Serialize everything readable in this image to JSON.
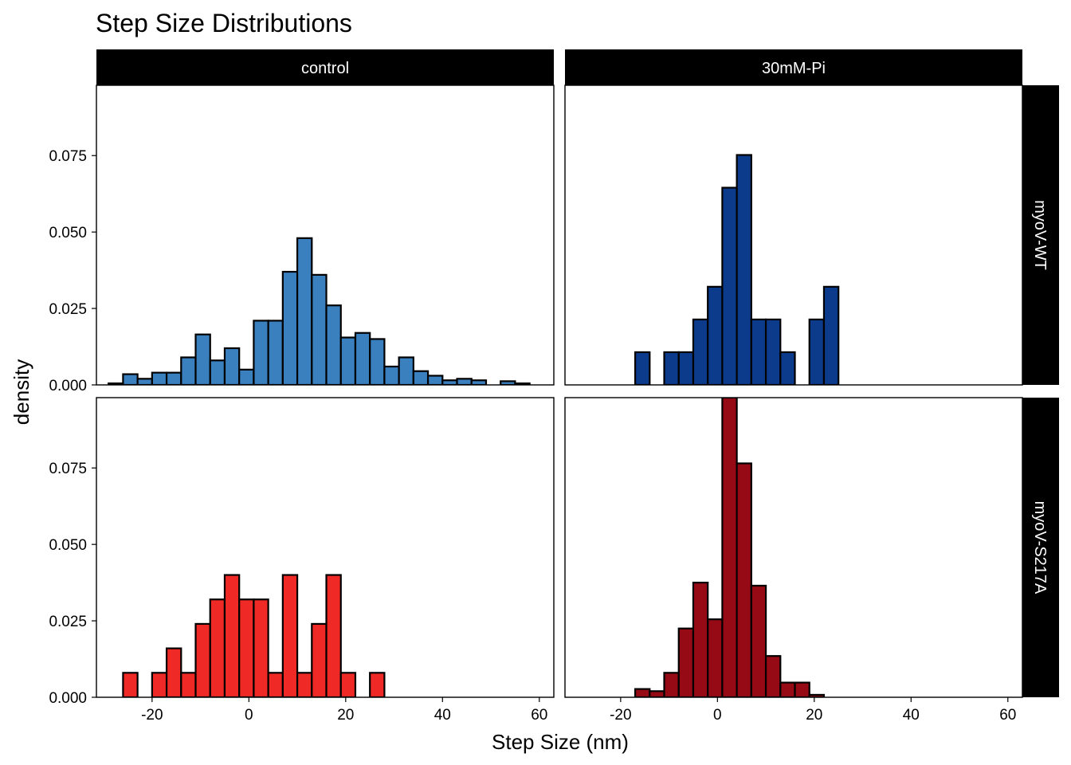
{
  "chart_data": {
    "type": "bar",
    "subtype": "faceted-histogram",
    "title": "Step Size Distributions",
    "xlabel": "Step Size (nm)",
    "ylabel": "density",
    "xlim": [
      -31.5,
      63
    ],
    "ylim": [
      0,
      0.098
    ],
    "x_ticks": [
      -20,
      0,
      20,
      40,
      60
    ],
    "x_tick_labels": [
      "-20",
      "0",
      "20",
      "40",
      "60"
    ],
    "y_ticks": [
      0,
      0.025,
      0.05,
      0.075
    ],
    "y_tick_labels": [
      "0.000",
      "0.025",
      "0.050",
      "0.075"
    ],
    "bin_width": 3,
    "facet_cols": [
      "control",
      "30mM-Pi"
    ],
    "facet_rows": [
      "myoV-WT",
      "myoV-S217A"
    ],
    "panels": [
      {
        "col": "control",
        "row": "myoV-WT",
        "color": "#3a80bf",
        "bins": [
          {
            "x0": -29,
            "y": 0.0005
          },
          {
            "x0": -26,
            "y": 0.0035
          },
          {
            "x0": -23,
            "y": 0.002
          },
          {
            "x0": -20,
            "y": 0.004
          },
          {
            "x0": -17,
            "y": 0.004
          },
          {
            "x0": -14,
            "y": 0.009
          },
          {
            "x0": -11,
            "y": 0.0165
          },
          {
            "x0": -8,
            "y": 0.008
          },
          {
            "x0": -5,
            "y": 0.012
          },
          {
            "x0": -2,
            "y": 0.005
          },
          {
            "x0": 1,
            "y": 0.021
          },
          {
            "x0": 4,
            "y": 0.021
          },
          {
            "x0": 7,
            "y": 0.037
          },
          {
            "x0": 10,
            "y": 0.048
          },
          {
            "x0": 13,
            "y": 0.036
          },
          {
            "x0": 16,
            "y": 0.026
          },
          {
            "x0": 19,
            "y": 0.0155
          },
          {
            "x0": 22,
            "y": 0.017
          },
          {
            "x0": 25,
            "y": 0.015
          },
          {
            "x0": 28,
            "y": 0.006
          },
          {
            "x0": 31,
            "y": 0.009
          },
          {
            "x0": 34,
            "y": 0.0045
          },
          {
            "x0": 37,
            "y": 0.003
          },
          {
            "x0": 40,
            "y": 0.0015
          },
          {
            "x0": 43,
            "y": 0.002
          },
          {
            "x0": 46,
            "y": 0.0015
          },
          {
            "x0": 49,
            "y": 0
          },
          {
            "x0": 52,
            "y": 0.0012
          },
          {
            "x0": 55,
            "y": 0.0005
          }
        ]
      },
      {
        "col": "30mM-Pi",
        "row": "myoV-WT",
        "color": "#0d3b8c",
        "bins": [
          {
            "x0": -29,
            "y": 0
          },
          {
            "x0": -26,
            "y": 0
          },
          {
            "x0": -23,
            "y": 0
          },
          {
            "x0": -20,
            "y": 0
          },
          {
            "x0": -17,
            "y": 0.0107
          },
          {
            "x0": -14,
            "y": 0
          },
          {
            "x0": -11,
            "y": 0.0107
          },
          {
            "x0": -8,
            "y": 0.0107
          },
          {
            "x0": -5,
            "y": 0.0214
          },
          {
            "x0": -2,
            "y": 0.0321
          },
          {
            "x0": 1,
            "y": 0.0645
          },
          {
            "x0": 4,
            "y": 0.0752
          },
          {
            "x0": 7,
            "y": 0.0214
          },
          {
            "x0": 10,
            "y": 0.0214
          },
          {
            "x0": 13,
            "y": 0.0107
          },
          {
            "x0": 16,
            "y": 0
          },
          {
            "x0": 19,
            "y": 0.0214
          },
          {
            "x0": 22,
            "y": 0.0321
          },
          {
            "x0": 25,
            "y": 0
          },
          {
            "x0": 28,
            "y": 0
          },
          {
            "x0": 31,
            "y": 0
          },
          {
            "x0": 34,
            "y": 0
          },
          {
            "x0": 37,
            "y": 0
          },
          {
            "x0": 40,
            "y": 0
          },
          {
            "x0": 43,
            "y": 0
          },
          {
            "x0": 46,
            "y": 0
          },
          {
            "x0": 49,
            "y": 0
          },
          {
            "x0": 52,
            "y": 0
          },
          {
            "x0": 55,
            "y": 0
          }
        ]
      },
      {
        "col": "control",
        "row": "myoV-S217A",
        "color": "#ef2a26",
        "bins": [
          {
            "x0": -29,
            "y": 0
          },
          {
            "x0": -26,
            "y": 0.008
          },
          {
            "x0": -23,
            "y": 0
          },
          {
            "x0": -20,
            "y": 0.008
          },
          {
            "x0": -17,
            "y": 0.016
          },
          {
            "x0": -14,
            "y": 0.008
          },
          {
            "x0": -11,
            "y": 0.024
          },
          {
            "x0": -8,
            "y": 0.032
          },
          {
            "x0": -5,
            "y": 0.04
          },
          {
            "x0": -2,
            "y": 0.032
          },
          {
            "x0": 1,
            "y": 0.032
          },
          {
            "x0": 4,
            "y": 0.008
          },
          {
            "x0": 7,
            "y": 0.04
          },
          {
            "x0": 10,
            "y": 0.008
          },
          {
            "x0": 13,
            "y": 0.024
          },
          {
            "x0": 16,
            "y": 0.04
          },
          {
            "x0": 19,
            "y": 0.008
          },
          {
            "x0": 22,
            "y": 0
          },
          {
            "x0": 25,
            "y": 0.008
          },
          {
            "x0": 28,
            "y": 0
          },
          {
            "x0": 31,
            "y": 0
          },
          {
            "x0": 34,
            "y": 0
          },
          {
            "x0": 37,
            "y": 0
          },
          {
            "x0": 40,
            "y": 0
          },
          {
            "x0": 43,
            "y": 0
          },
          {
            "x0": 46,
            "y": 0
          },
          {
            "x0": 49,
            "y": 0
          },
          {
            "x0": 52,
            "y": 0
          },
          {
            "x0": 55,
            "y": 0
          }
        ]
      },
      {
        "col": "30mM-Pi",
        "row": "myoV-S217A",
        "color": "#960a16",
        "bins": [
          {
            "x0": -29,
            "y": 0
          },
          {
            "x0": -26,
            "y": 0
          },
          {
            "x0": -23,
            "y": 0
          },
          {
            "x0": -20,
            "y": 0
          },
          {
            "x0": -17,
            "y": 0.0027
          },
          {
            "x0": -14,
            "y": 0.002
          },
          {
            "x0": -11,
            "y": 0.008
          },
          {
            "x0": -8,
            "y": 0.0225
          },
          {
            "x0": -5,
            "y": 0.0375
          },
          {
            "x0": -2,
            "y": 0.0255
          },
          {
            "x0": 1,
            "y": 0.098
          },
          {
            "x0": 4,
            "y": 0.0765
          },
          {
            "x0": 7,
            "y": 0.0365
          },
          {
            "x0": 10,
            "y": 0.0135
          },
          {
            "x0": 13,
            "y": 0.0048
          },
          {
            "x0": 16,
            "y": 0.0048
          },
          {
            "x0": 19,
            "y": 0.0008
          },
          {
            "x0": 22,
            "y": 0
          },
          {
            "x0": 25,
            "y": 0
          },
          {
            "x0": 28,
            "y": 0
          },
          {
            "x0": 31,
            "y": 0
          },
          {
            "x0": 34,
            "y": 0
          },
          {
            "x0": 37,
            "y": 0
          },
          {
            "x0": 40,
            "y": 0
          },
          {
            "x0": 43,
            "y": 0
          },
          {
            "x0": 46,
            "y": 0
          },
          {
            "x0": 49,
            "y": 0
          },
          {
            "x0": 52,
            "y": 0
          },
          {
            "x0": 55,
            "y": 0
          }
        ]
      }
    ]
  }
}
